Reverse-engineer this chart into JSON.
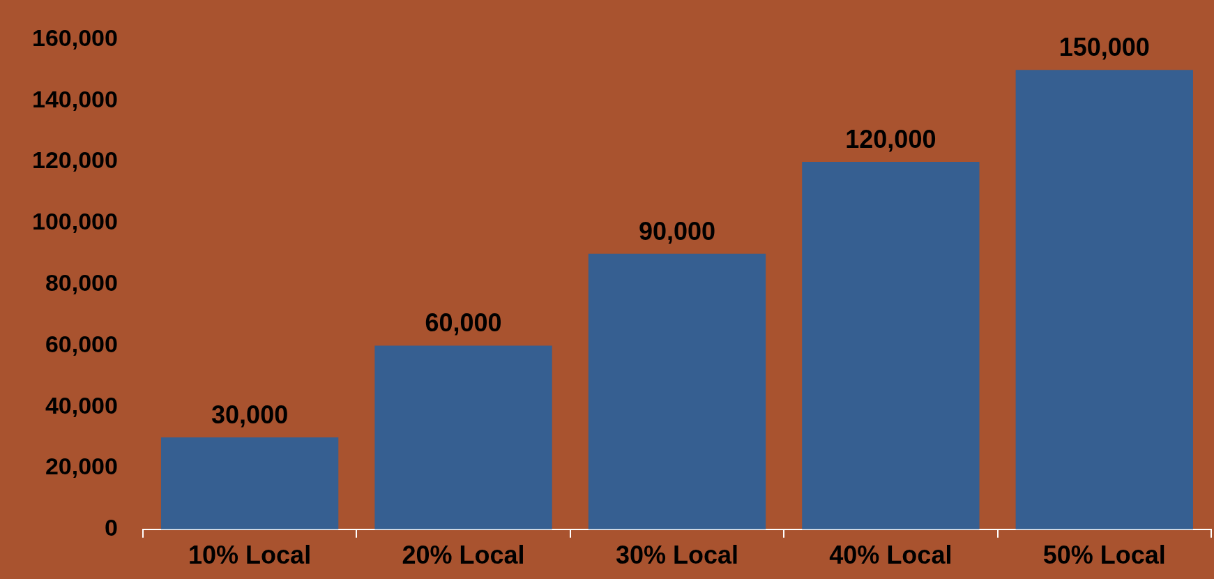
{
  "chart_data": {
    "type": "bar",
    "categories": [
      "10% Local",
      "20% Local",
      "30% Local",
      "40% Local",
      "50% Local"
    ],
    "values": [
      30000,
      60000,
      90000,
      120000,
      150000
    ],
    "value_labels": [
      "30,000",
      "60,000",
      "90,000",
      "120,000",
      "150,000"
    ],
    "color": "#365f91",
    "ylim": [
      0,
      160000
    ],
    "yticks": [
      {
        "value": 0,
        "label": "0"
      },
      {
        "value": 20000,
        "label": "20,000"
      },
      {
        "value": 40000,
        "label": "40,000"
      },
      {
        "value": 60000,
        "label": "60,000"
      },
      {
        "value": 80000,
        "label": "80,000"
      },
      {
        "value": 100000,
        "label": "100,000"
      },
      {
        "value": 120000,
        "label": "120,000"
      },
      {
        "value": 140000,
        "label": "140,000"
      },
      {
        "value": 160000,
        "label": "160,000"
      }
    ],
    "legend": false
  }
}
